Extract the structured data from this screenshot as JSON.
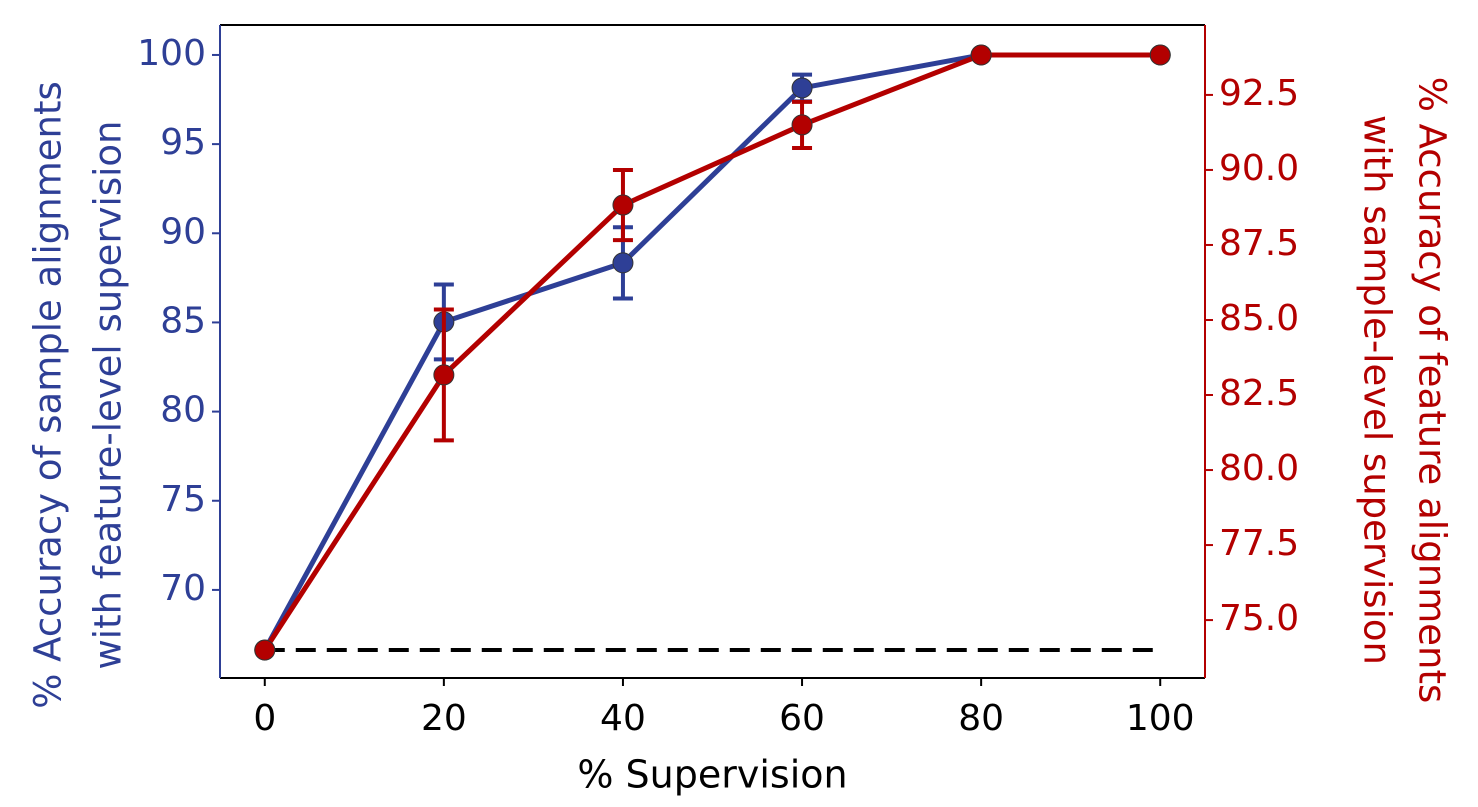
{
  "chart_data": {
    "type": "line",
    "xlabel": "% Supervision",
    "ylabel": [
      "% Accuracy of sample alignments",
      "with feature-level supervision"
    ],
    "y2label": [
      "% Accuracy of feature alignments",
      "with sample-level supervision"
    ],
    "x": [
      0,
      20,
      40,
      60,
      80,
      100
    ],
    "series": [
      {
        "name": "sample alignments",
        "color": "#2e3f96",
        "axis": "y",
        "values": [
          66.63,
          85.03,
          88.34,
          98.15,
          100,
          100
        ],
        "errors": [
          null,
          2.1,
          2.0,
          0.75,
          null,
          null
        ]
      },
      {
        "name": "feature alignments",
        "color": "#b30000",
        "axis": "y2",
        "values": [
          74.0,
          83.17,
          88.83,
          91.5,
          93.83,
          93.83
        ],
        "errors": [
          null,
          2.18,
          1.17,
          0.77,
          null,
          null
        ]
      }
    ],
    "reference_line": {
      "value": 66.63,
      "axis": "y",
      "color": "#000000",
      "style": "dashed"
    },
    "xlim": [
      -5,
      105
    ],
    "xticks": [
      0,
      20,
      40,
      60,
      80,
      100
    ],
    "ylim": [
      65.06,
      101.68
    ],
    "yticks": [
      70,
      75,
      80,
      85,
      90,
      95,
      100
    ],
    "y2lim": [
      73.07,
      94.83
    ],
    "y2ticks": [
      {
        "value": 75.0,
        "label": "75.0"
      },
      77.5,
      {
        "value": 80.0,
        "label": "80.0"
      },
      82.5,
      {
        "value": 85.0,
        "label": "85.0"
      },
      87.5,
      {
        "value": 90.0,
        "label": "90.0"
      },
      92.5
    ]
  }
}
